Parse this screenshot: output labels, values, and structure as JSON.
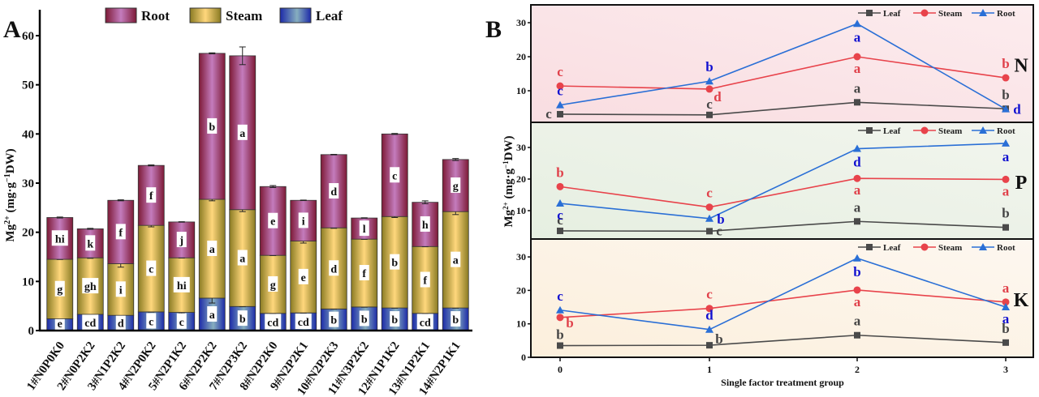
{
  "panels": {
    "a_label": "A",
    "b_label": "B"
  },
  "chart_data": [
    {
      "type": "bar",
      "stacked": true,
      "title": "",
      "xlabel": "",
      "ylabel": "Mg²⁺ (mg·g⁻¹DW)",
      "ylabel_parts": {
        "main": "Mg",
        "sup": "2+",
        "rest1": " (mg·g",
        "sup2": "−1",
        "rest2": "DW)"
      },
      "ylim": [
        0,
        60
      ],
      "yticks": [
        "0",
        "10",
        "20",
        "30",
        "40",
        "50",
        "60"
      ],
      "legend": [
        "Root",
        "Steam",
        "Leaf"
      ],
      "legend_position": "top",
      "colors": {
        "Root": "#b86aa8",
        "Steam": "#f2cf7a",
        "Leaf": "#3f56b0"
      },
      "categories": [
        "1#N0P0K0",
        "2#N0P2K2",
        "3#N1P2K2",
        "4#N2P0K2",
        "5#N2P1K2",
        "6#N2P2K2",
        "7#N2P3K2",
        "8#N2P2K0",
        "9#N2P2K1",
        "10#N2P2K3",
        "11#N3P2K2",
        "12#N1P1K2",
        "13#N1P2K1",
        "14#N2P1K1"
      ],
      "series": [
        {
          "name": "Leaf",
          "values": [
            2.4,
            3.3,
            3.1,
            3.8,
            3.7,
            6.6,
            4.9,
            3.5,
            3.6,
            4.4,
            4.8,
            4.6,
            3.5,
            4.6
          ],
          "letters": [
            "e",
            "cd",
            "d",
            "c",
            "c",
            "a",
            "b",
            "cd",
            "cd",
            "b",
            "b",
            "b",
            "cd",
            "b"
          ]
        },
        {
          "name": "Steam",
          "values": [
            12.1,
            11.5,
            10.5,
            17.6,
            11.1,
            20.1,
            19.7,
            11.8,
            14.6,
            16.5,
            13.8,
            18.6,
            13.6,
            19.6
          ],
          "letters": [
            "g",
            "gh",
            "i",
            "c",
            "hi",
            "a",
            "a",
            "g",
            "e",
            "d",
            "f",
            "b",
            "f",
            "a"
          ]
        },
        {
          "name": "Root",
          "values": [
            8.5,
            5.9,
            12.9,
            12.2,
            7.3,
            29.7,
            31.3,
            14.0,
            8.3,
            14.9,
            4.3,
            16.8,
            9.0,
            10.6
          ],
          "letters": [
            "hi",
            "k",
            "f",
            "f",
            "j",
            "b",
            "a",
            "e",
            "i",
            "d",
            "l",
            "c",
            "h",
            "g"
          ]
        }
      ]
    },
    {
      "type": "line",
      "xlabel": "Single factor treatment group",
      "ylabel": "Mg²⁺ (mg·g⁻¹DW)",
      "x": [
        0,
        1,
        2,
        3
      ],
      "xticks": [
        "0",
        "1",
        "2",
        "3"
      ],
      "legend": [
        "Leaf",
        "Steam",
        "Root"
      ],
      "legend_position": "top-right",
      "colors": {
        "Leaf": "#4a4a4a",
        "Steam": "#e8434b",
        "Root": "#2a6fd6"
      },
      "letter_colors": {
        "Leaf": "#444444",
        "Steam": "#e0404a",
        "Root": "#1010d0"
      },
      "subplots": [
        {
          "name": "N",
          "ylim": [
            0,
            35
          ],
          "yticks": [
            "10",
            "20",
            "30"
          ],
          "background": "#fbe3e6",
          "series": [
            {
              "name": "Leaf",
              "values": [
                3.1,
                2.9,
                6.6,
                4.7
              ],
              "letters": [
                "c",
                "c",
                "a",
                "b"
              ]
            },
            {
              "name": "Steam",
              "values": [
                11.4,
                10.5,
                20.0,
                13.8
              ],
              "letters": [
                "c",
                "d",
                "a",
                "b"
              ]
            },
            {
              "name": "Root",
              "values": [
                5.8,
                12.8,
                29.7,
                4.6
              ],
              "letters": [
                "c",
                "b",
                "a",
                "d"
              ]
            }
          ]
        },
        {
          "name": "P",
          "ylim": [
            0,
            36
          ],
          "yticks": [
            "10",
            "20",
            "30"
          ],
          "background": "#e8f1e4",
          "series": [
            {
              "name": "Leaf",
              "values": [
                3.6,
                3.5,
                6.6,
                4.7
              ],
              "letters": [
                "c",
                "c",
                "a",
                "b"
              ]
            },
            {
              "name": "Steam",
              "values": [
                17.6,
                11.1,
                20.2,
                19.9
              ],
              "letters": [
                "b",
                "c",
                "a",
                "a"
              ]
            },
            {
              "name": "Root",
              "values": [
                12.3,
                7.5,
                29.6,
                31.3
              ],
              "letters": [
                "c",
                "b",
                "d",
                "a"
              ]
            }
          ]
        },
        {
          "name": "K",
          "ylim": [
            0,
            35
          ],
          "yticks": [
            "0",
            "10",
            "20",
            "30"
          ],
          "background": "#fdf3e6",
          "series": [
            {
              "name": "Leaf",
              "values": [
                3.5,
                3.6,
                6.6,
                4.4
              ],
              "letters": [
                "b",
                "b",
                "a",
                "b"
              ]
            },
            {
              "name": "Steam",
              "values": [
                11.9,
                14.6,
                20.1,
                16.5
              ],
              "letters": [
                "b",
                "c",
                "a",
                "a"
              ]
            },
            {
              "name": "Root",
              "values": [
                14.1,
                8.3,
                29.6,
                15.0
              ],
              "letters": [
                "c",
                "d",
                "b",
                "a"
              ]
            }
          ]
        }
      ]
    }
  ]
}
